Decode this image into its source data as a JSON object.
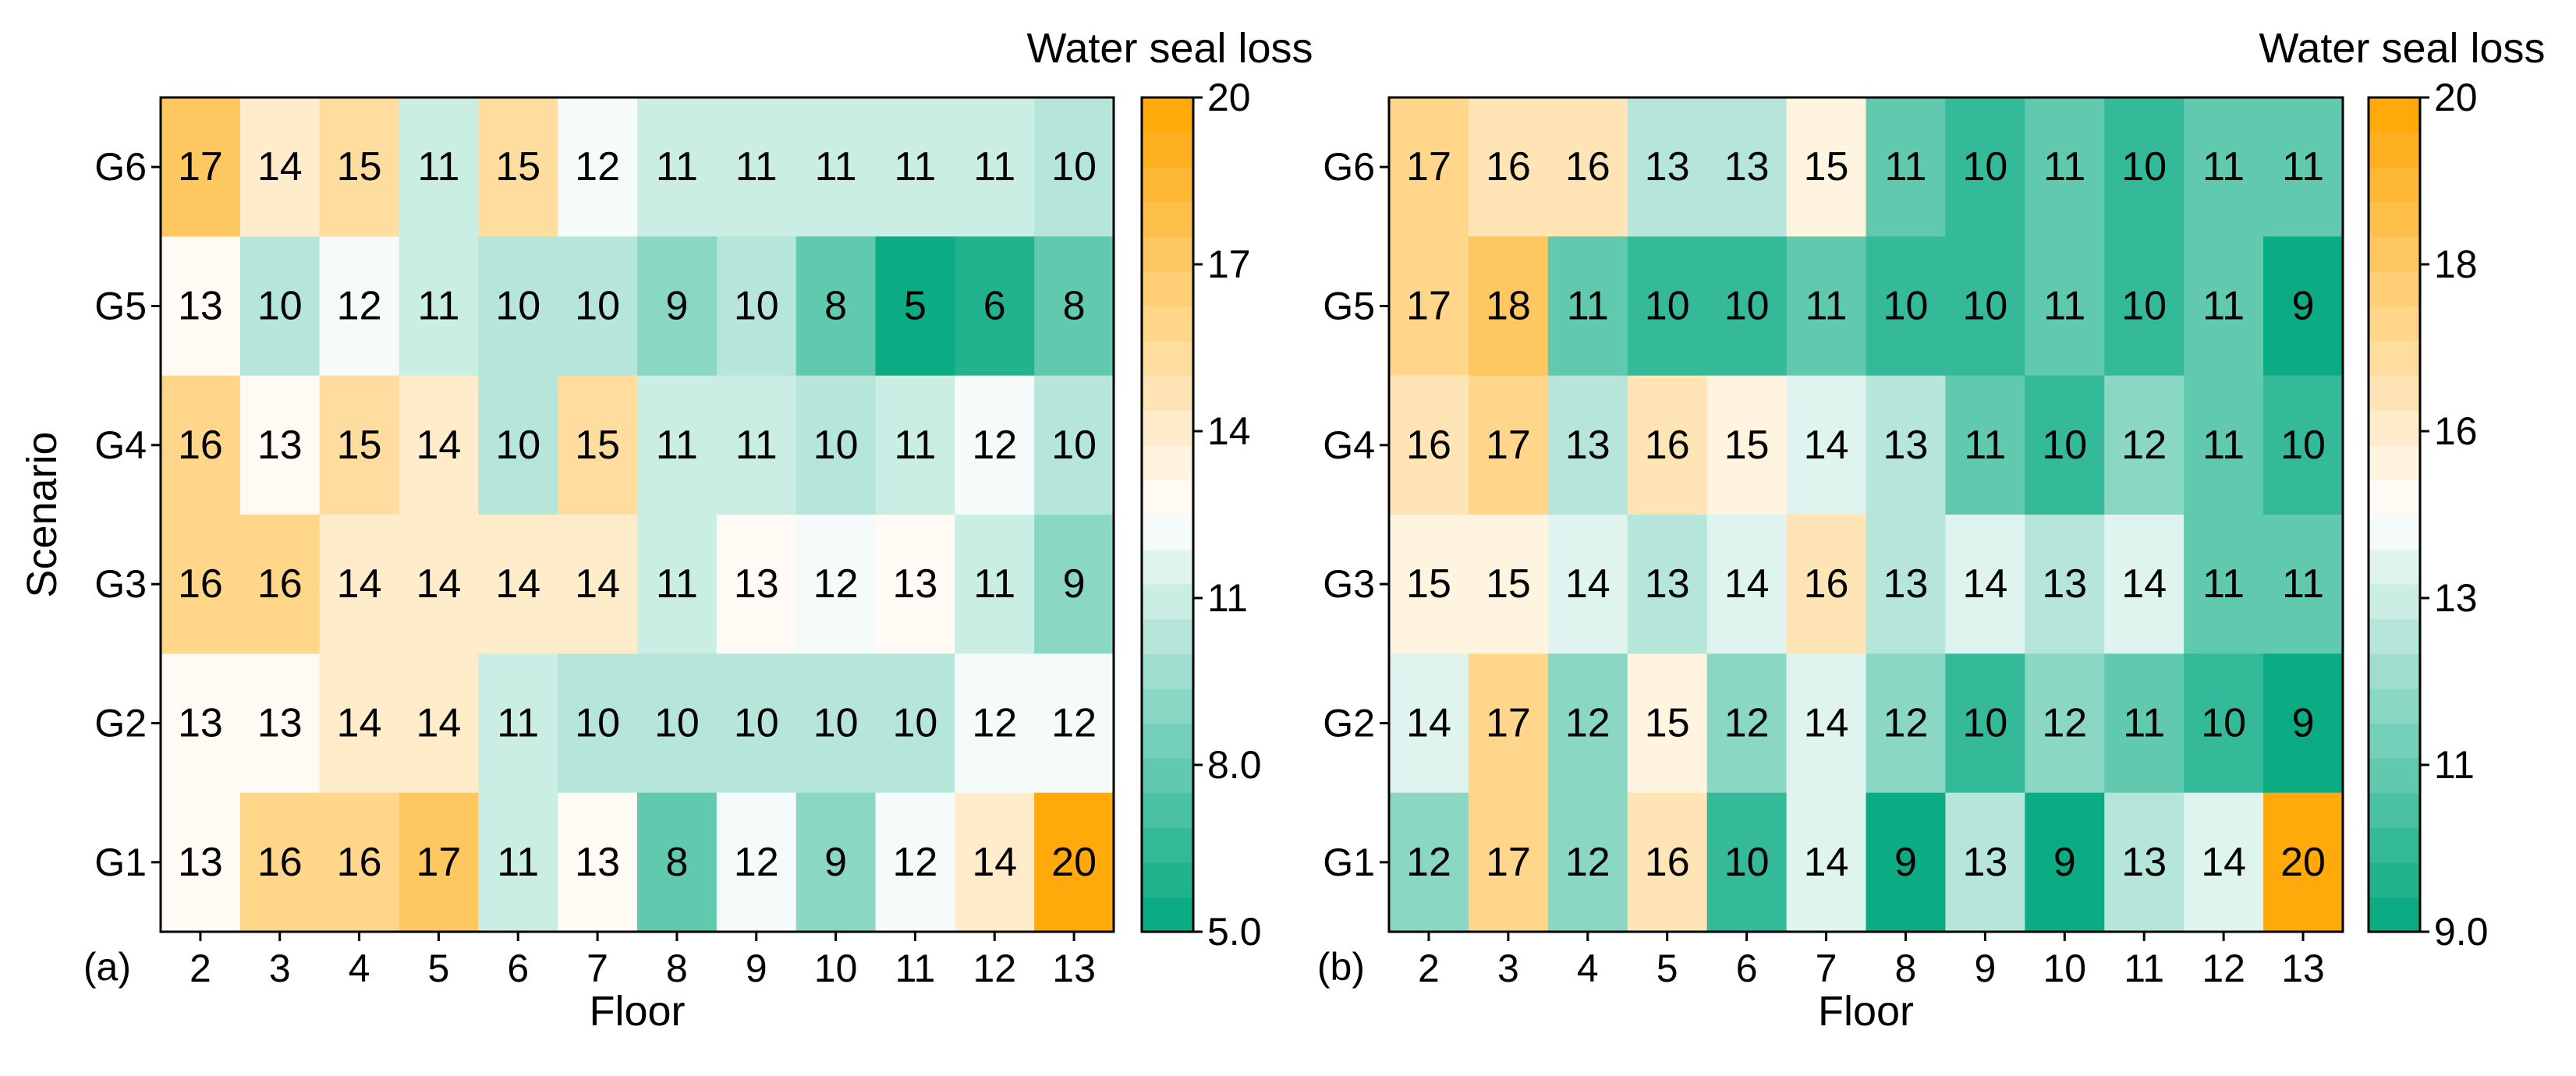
{
  "chart_data": [
    {
      "type": "heatmap",
      "panel_label": "(a)",
      "xlabel": "Floor",
      "ylabel": "Scenario",
      "x": [
        2,
        3,
        4,
        5,
        6,
        7,
        8,
        9,
        10,
        11,
        12,
        13
      ],
      "y": [
        "G6",
        "G5",
        "G4",
        "G3",
        "G2",
        "G1"
      ],
      "values": [
        [
          17,
          14,
          15,
          11,
          15,
          12,
          11,
          11,
          11,
          11,
          11,
          10
        ],
        [
          13,
          10,
          12,
          11,
          10,
          10,
          9,
          10,
          8,
          5,
          6,
          8
        ],
        [
          16,
          13,
          15,
          14,
          10,
          15,
          11,
          11,
          10,
          11,
          12,
          10
        ],
        [
          16,
          16,
          14,
          14,
          14,
          14,
          11,
          13,
          12,
          13,
          11,
          9
        ],
        [
          13,
          13,
          14,
          14,
          11,
          10,
          10,
          10,
          10,
          10,
          12,
          12
        ],
        [
          13,
          16,
          16,
          17,
          11,
          13,
          8,
          12,
          9,
          12,
          14,
          20
        ]
      ],
      "colorbar": {
        "title": "Water seal loss",
        "range": [
          5,
          20
        ],
        "ticks": [
          "5.0",
          "8.0",
          "11",
          "14",
          "17",
          "20"
        ],
        "low_color": "#00a87e",
        "mid_color": "#ffffff",
        "high_color": "#ffa500"
      }
    },
    {
      "type": "heatmap",
      "panel_label": "(b)",
      "xlabel": "Floor",
      "ylabel": "",
      "x": [
        2,
        3,
        4,
        5,
        6,
        7,
        8,
        9,
        10,
        11,
        12,
        13
      ],
      "y": [
        "G6",
        "G5",
        "G4",
        "G3",
        "G2",
        "G1"
      ],
      "values": [
        [
          17,
          16,
          16,
          13,
          13,
          15,
          11,
          10,
          11,
          10,
          11,
          11
        ],
        [
          17,
          18,
          11,
          10,
          10,
          11,
          10,
          10,
          11,
          10,
          11,
          9
        ],
        [
          16,
          17,
          13,
          16,
          15,
          14,
          13,
          11,
          10,
          12,
          11,
          10
        ],
        [
          15,
          15,
          14,
          13,
          14,
          16,
          13,
          14,
          13,
          14,
          11,
          11
        ],
        [
          14,
          17,
          12,
          15,
          12,
          14,
          12,
          10,
          12,
          11,
          10,
          9
        ],
        [
          12,
          17,
          12,
          16,
          10,
          14,
          9,
          13,
          9,
          13,
          14,
          20
        ]
      ],
      "colorbar": {
        "title": "Water seal loss",
        "range": [
          9,
          20
        ],
        "ticks": [
          "9.0",
          "11",
          "13",
          "16",
          "18",
          "20"
        ],
        "low_color": "#00a87e",
        "mid_color": "#ffffff",
        "high_color": "#ffa500"
      }
    }
  ]
}
